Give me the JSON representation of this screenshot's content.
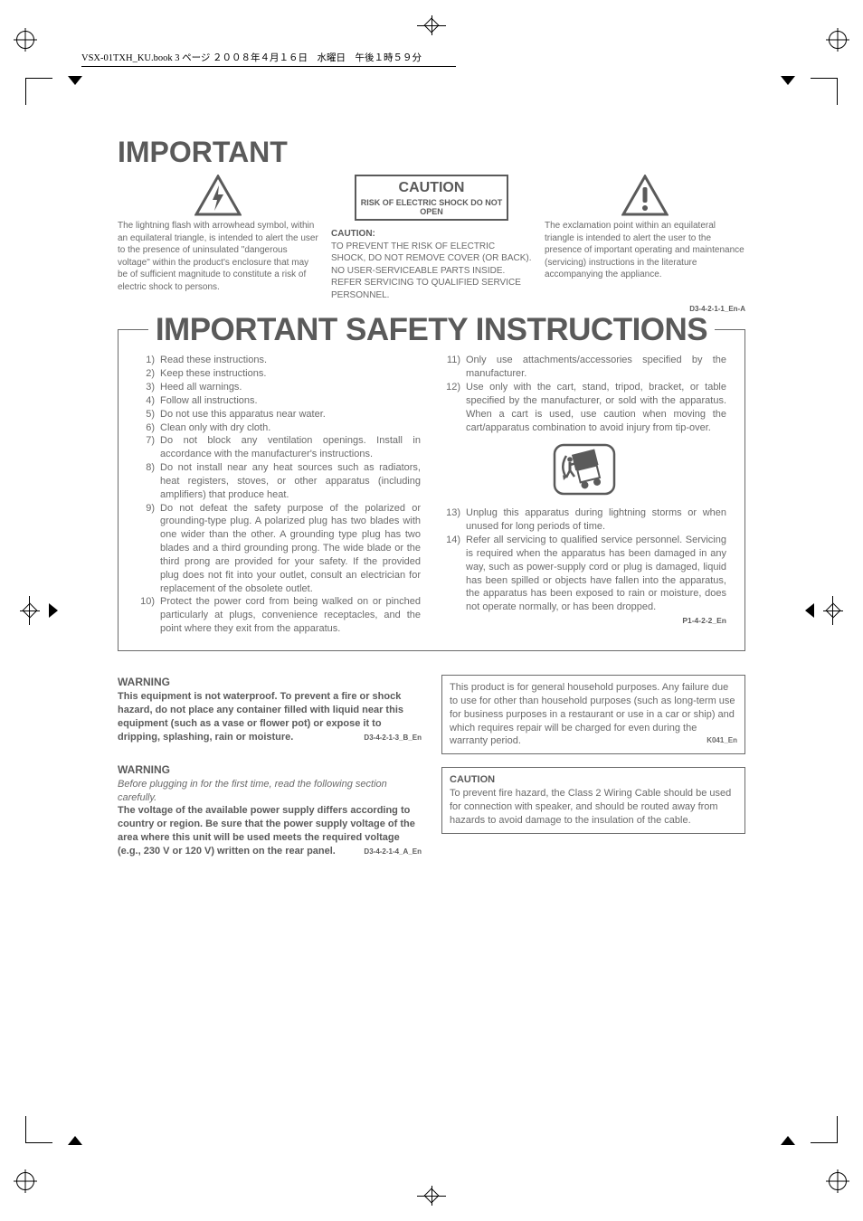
{
  "header_filename": "VSX-01TXH_KU.book  3 ページ  ２００８年４月１６日　水曜日　午後１時５９分",
  "colors": {
    "text_body": "#6a6a6a",
    "text_heading": "#5a5a5a",
    "border": "#6a6a6a",
    "page_bg": "#ffffff"
  },
  "fonts": {
    "heading_size_pt": 32,
    "safety_title_pt": 35,
    "body_pt": 11,
    "small_pt": 10,
    "code_pt": 8
  },
  "important": {
    "title": "IMPORTANT",
    "col1_text": "The lightning flash with arrowhead symbol, within an equilateral triangle, is intended to alert the user to the presence of uninsulated \"dangerous voltage\" within the product's enclosure that may be of sufficient magnitude to constitute a risk of electric shock to persons.",
    "col2_caution": "CAUTION",
    "col2_caution_sub": "RISK OF ELECTRIC SHOCK DO NOT OPEN",
    "col2_cap": "CAUTION:",
    "col2_text": "TO PREVENT THE RISK OF ELECTRIC SHOCK, DO NOT REMOVE COVER (OR BACK). NO USER-SERVICEABLE PARTS INSIDE. REFER SERVICING TO QUALIFIED SERVICE PERSONNEL.",
    "col3_text": "The exclamation point within an equilateral triangle is intended to alert the user to the presence of important operating and maintenance (servicing) instructions in the literature accompanying the appliance.",
    "code": "D3-4-2-1-1_En-A"
  },
  "safety": {
    "title": "IMPORTANT SAFETY INSTRUCTIONS",
    "left": [
      {
        "n": "1)",
        "t": "Read these instructions.",
        "nj": true
      },
      {
        "n": "2)",
        "t": "Keep these instructions.",
        "nj": true
      },
      {
        "n": "3)",
        "t": "Heed all warnings.",
        "nj": true
      },
      {
        "n": "4)",
        "t": "Follow all instructions.",
        "nj": true
      },
      {
        "n": "5)",
        "t": "Do not use this apparatus near water.",
        "nj": true
      },
      {
        "n": "6)",
        "t": "Clean only with dry cloth.",
        "nj": true
      },
      {
        "n": "7)",
        "t": "Do not block any ventilation openings. Install in accordance with the manufacturer's instructions."
      },
      {
        "n": "8)",
        "t": "Do not install near any heat sources such as radiators, heat registers, stoves, or other apparatus (including amplifiers) that produce heat."
      },
      {
        "n": "9)",
        "t": "Do not defeat the safety purpose of the polarized or grounding-type plug. A polarized plug has two blades with one wider than the other. A grounding type plug has two blades and a third grounding prong. The wide blade or the third prong are provided for your safety. If the provided plug does not fit into your outlet, consult an electrician for replacement of the obsolete outlet."
      },
      {
        "n": "10)",
        "t": "Protect the power cord from being walked on or pinched particularly at plugs, convenience receptacles, and the point where they exit from the apparatus."
      }
    ],
    "right": [
      {
        "n": "11)",
        "t": "Only use attachments/accessories specified by the manufacturer."
      },
      {
        "n": "12)",
        "t": "Use only with the cart, stand, tripod, bracket, or table specified by the manufacturer, or sold with the apparatus. When a cart is used, use caution when moving the cart/apparatus combination to avoid injury from tip-over."
      },
      {
        "n": "13)",
        "t": "Unplug this apparatus during lightning storms or when unused for long periods of time."
      },
      {
        "n": "14)",
        "t": "Refer all servicing to qualified service personnel. Servicing is required when the apparatus has been damaged in any way, such as power-supply cord or plug is damaged, liquid has been spilled or objects have fallen into the apparatus, the apparatus has been exposed to rain or moisture, does not operate normally, or has been dropped."
      }
    ],
    "code": "P1-4-2-2_En"
  },
  "lower": {
    "warn1_h": "WARNING",
    "warn1_body": "This equipment is not waterproof. To prevent a fire or shock hazard, do not place any container filled with liquid near this equipment (such as a vase or flower pot) or expose it to dripping, splashing, rain or moisture.",
    "warn1_code": "D3-4-2-1-3_B_En",
    "warn2_h": "WARNING",
    "warn2_pre": "Before plugging in for the first time, read the following section carefully.",
    "warn2_body": "The voltage of the available power supply differs according to country or region. Be sure that the power supply voltage of the area where this unit will be used meets the required voltage (e.g., 230 V or 120 V) written on the rear panel.",
    "warn2_code": "D3-4-2-1-4_A_En",
    "box1_text": "This product is for general household purposes. Any failure due to use for other than household purposes (such as long-term use for business purposes in a restaurant or use in a car or ship) and which requires repair will be charged for even during the warranty period.",
    "box1_code": "K041_En",
    "box2_cap": "CAUTION",
    "box2_text": "To prevent fire hazard, the Class 2 Wiring Cable should be used for connection with speaker, and should be routed away from hazards to avoid damage to the insulation of the cable."
  }
}
